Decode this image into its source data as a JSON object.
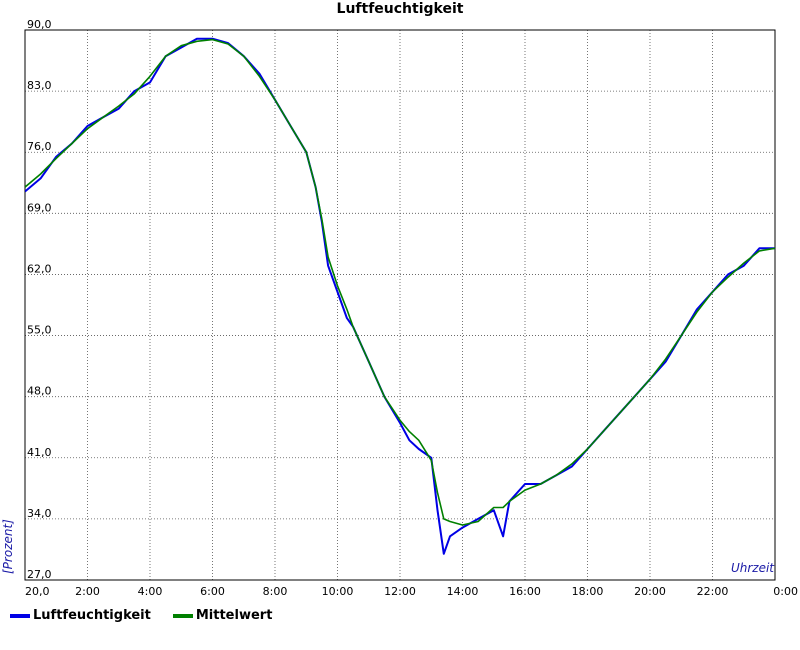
{
  "chart_data": {
    "type": "line",
    "title": "Luftfeuchtigkeit",
    "xlabel": "Uhrzeit",
    "ylabel": "[Prozent]",
    "ylim": [
      27,
      90
    ],
    "xlim": [
      0,
      24
    ],
    "grid": true,
    "legend_position": "bottom-left",
    "y_ticks": [
      "27,0",
      "34,0",
      "41,0",
      "48,0",
      "55,0",
      "62,0",
      "69,0",
      "76,0",
      "83,0",
      "90,0"
    ],
    "x_ticks": [
      "20,0",
      "2:00",
      "4:00",
      "6:00",
      "8:00",
      "10:00",
      "12:00",
      "14:00",
      "16:00",
      "18:00",
      "20:00",
      "22:00",
      "0:00"
    ],
    "series": [
      {
        "name": "Luftfeuchtigkeit",
        "color": "#0000e6",
        "x": [
          0,
          0.5,
          1,
          1.5,
          2,
          2.5,
          3,
          3.5,
          4,
          4.5,
          5,
          5.5,
          6,
          6.5,
          7,
          7.5,
          8,
          8.5,
          9,
          9.3,
          9.5,
          9.7,
          10,
          10.3,
          10.5,
          11,
          11.5,
          12,
          12.3,
          12.6,
          13,
          13.2,
          13.4,
          13.6,
          14,
          14.5,
          15,
          15.3,
          15.5,
          16,
          16.5,
          17,
          17.5,
          18,
          18.5,
          19,
          19.5,
          20,
          20.5,
          21,
          21.5,
          22,
          22.5,
          23,
          23.5,
          24
        ],
        "y": [
          71.5,
          73,
          75.5,
          77,
          79,
          80,
          81,
          83,
          84,
          87,
          88,
          89,
          89,
          88.5,
          87,
          85,
          82,
          79,
          76,
          72,
          68,
          63,
          60,
          57,
          56,
          52,
          48,
          45,
          43,
          42,
          41,
          35,
          30,
          32,
          33,
          34,
          35,
          32,
          36,
          38,
          38,
          39,
          40,
          42,
          44,
          46,
          48,
          50,
          52,
          55,
          58,
          60,
          62,
          63,
          65,
          65
        ]
      },
      {
        "name": "Mittelwert",
        "color": "#008000",
        "x": [
          0,
          0.5,
          1,
          1.5,
          2,
          2.5,
          3,
          3.5,
          4,
          4.5,
          5,
          5.5,
          6,
          6.5,
          7,
          7.5,
          8,
          8.5,
          9,
          9.3,
          9.5,
          9.7,
          10,
          10.3,
          10.5,
          11,
          11.5,
          12,
          12.3,
          12.6,
          13,
          13.2,
          13.4,
          13.6,
          14,
          14.5,
          15,
          15.3,
          15.5,
          16,
          16.5,
          17,
          17.5,
          18,
          18.5,
          19,
          19.5,
          20,
          20.5,
          21,
          21.5,
          22,
          22.5,
          23,
          23.5,
          24
        ],
        "y": [
          72,
          73.5,
          75.3,
          77,
          78.7,
          80,
          81.3,
          82.7,
          84.7,
          87,
          88.2,
          88.7,
          88.9,
          88.4,
          87,
          84.7,
          82,
          79,
          76,
          72,
          68.3,
          64,
          60.7,
          58,
          56,
          52,
          48,
          45.3,
          44,
          43,
          40.7,
          37,
          34,
          33.7,
          33.3,
          33.7,
          35.3,
          35.3,
          36,
          37.3,
          38,
          39,
          40.3,
          42,
          44,
          46,
          48,
          50,
          52.3,
          55,
          57.7,
          60,
          61.7,
          63.3,
          64.7,
          65
        ]
      }
    ]
  },
  "legend": [
    {
      "label": "Luftfeuchtigkeit",
      "color": "#0000e6"
    },
    {
      "label": "Mittelwert",
      "color": "#008000"
    }
  ]
}
